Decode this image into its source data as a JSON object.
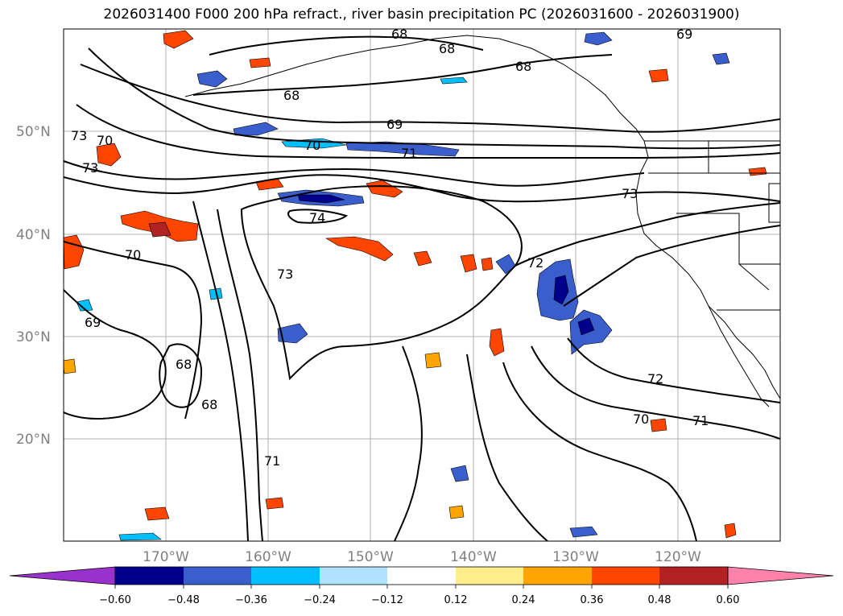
{
  "title": "2026031400 F000 200 hPa refract., river basin precipitation PC (2026031600 - 2026031900)",
  "map": {
    "projection": "PlateCarree",
    "extent": {
      "lon_min": -180,
      "lon_max": -110,
      "lat_min": 10,
      "lat_max": 60
    },
    "latitude_labels": [
      "20°N",
      "30°N",
      "40°N",
      "50°N"
    ],
    "longitude_labels": [
      "170°W",
      "160°W",
      "150°W",
      "140°W",
      "130°W",
      "120°W"
    ],
    "grid_color": "#b0b0b0",
    "coastline_color": "#000000",
    "contour_labels": [
      "68",
      "68",
      "68",
      "68",
      "68",
      "68",
      "69",
      "69",
      "69",
      "70",
      "70",
      "70",
      "70",
      "71",
      "71",
      "71",
      "72",
      "72",
      "73",
      "73",
      "73",
      "73",
      "74"
    ]
  },
  "colorbar": {
    "colors": [
      "#9932cc",
      "#00008b",
      "#3a5fcd",
      "#00bfff",
      "#b0e2ff",
      "#ffffff",
      "#ffec8b",
      "#ffa500",
      "#ff4500",
      "#b22222",
      "#ff82ab"
    ],
    "tick_labels": [
      "−0.60",
      "−0.48",
      "−0.36",
      "−0.24",
      "−0.12",
      "0.12",
      "0.24",
      "0.36",
      "0.48",
      "0.60"
    ]
  }
}
